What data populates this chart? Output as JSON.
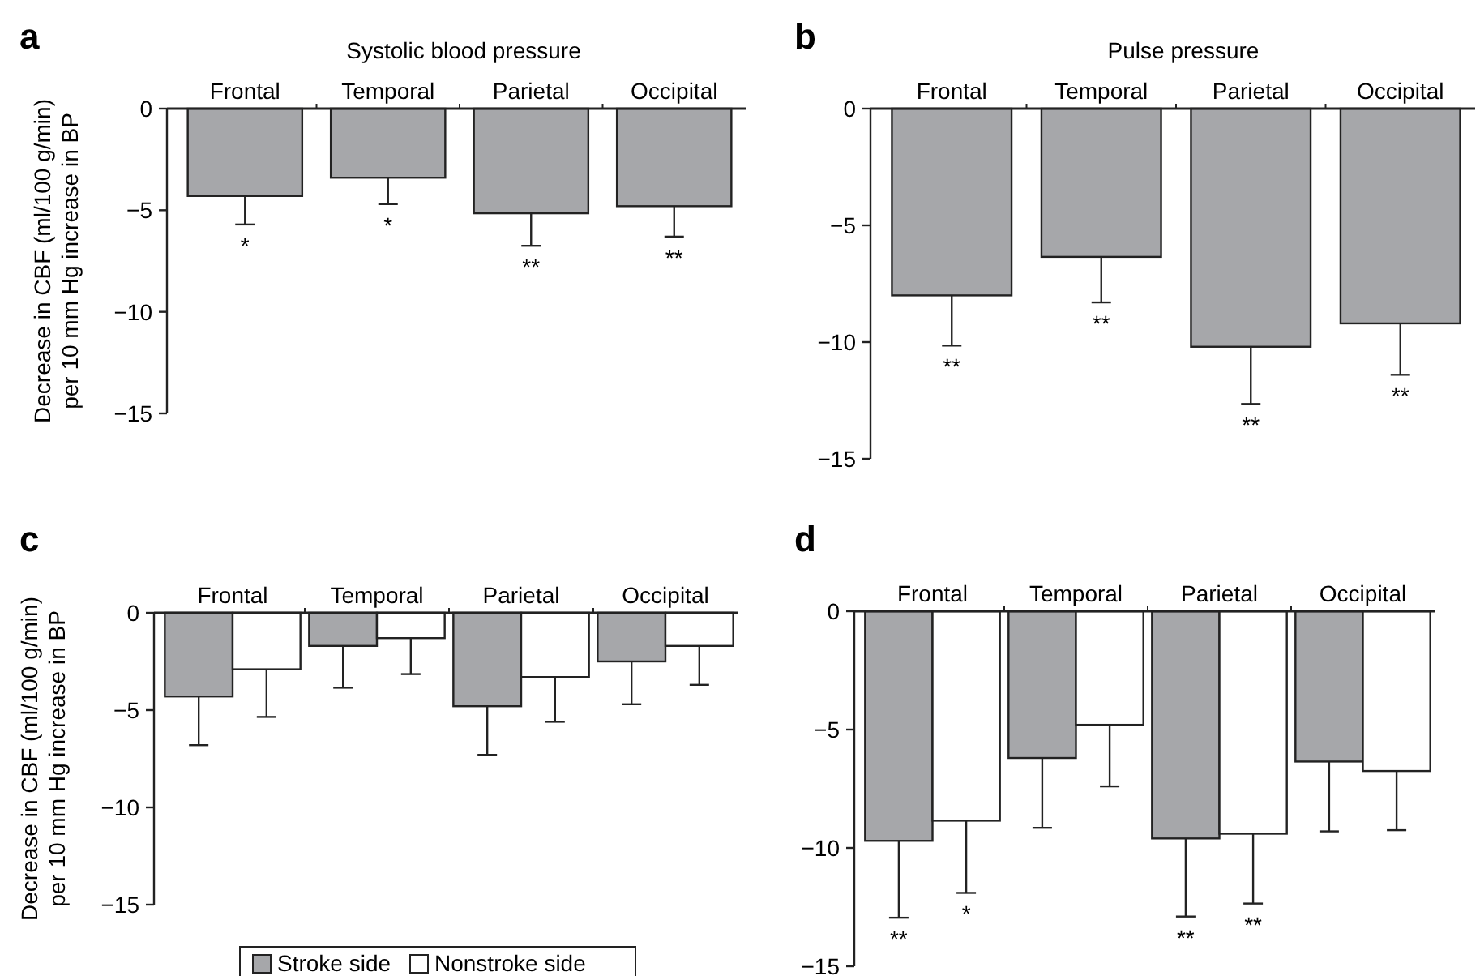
{
  "chart_data": [
    {
      "type": "bar",
      "title": "Systolic blood pressure",
      "ylabel": "Decrease in CBF (ml/100 g/min)\nper 10 mm Hg increase in BP",
      "categories": [
        "Frontal",
        "Temporal",
        "Parietal",
        "Occipital"
      ],
      "series": [
        {
          "color": "#a6a7aa",
          "values": [
            -4.3,
            -3.4,
            -5.15,
            -4.8
          ],
          "errors": [
            [
              -5.7,
              -4.3
            ],
            [
              -4.7,
              -3.4
            ],
            [
              -6.75,
              -5.15
            ],
            [
              -6.3,
              -4.8
            ]
          ]
        }
      ],
      "ylim": [
        -15,
        0
      ],
      "yticks": [
        {
          "value": 0,
          "label": "0"
        },
        {
          "value": -5,
          "label": "−5"
        },
        {
          "value": -10,
          "label": "−10"
        },
        {
          "value": -15,
          "label": "−15"
        }
      ],
      "annotations": [
        "a",
        "*",
        "*",
        "**",
        "**"
      ]
    },
    {
      "type": "bar",
      "title": "Pulse pressure",
      "categories": [
        "Frontal",
        "Temporal",
        "Parietal",
        "Occipital"
      ],
      "series": [
        {
          "color": "#a6a7aa",
          "values": [
            -8.0,
            -6.35,
            -10.2,
            -9.2
          ],
          "errors": [
            [
              -10.15,
              -8.0
            ],
            [
              -8.3,
              -6.35
            ],
            [
              -12.65,
              -10.2
            ],
            [
              -11.4,
              -9.2
            ]
          ]
        }
      ],
      "ylim": [
        -15,
        0
      ],
      "yticks": [
        {
          "value": 0,
          "label": "0"
        },
        {
          "value": -5,
          "label": "−5"
        },
        {
          "value": -10,
          "label": "−10"
        },
        {
          "value": -15,
          "label": "−15"
        }
      ],
      "annotations": [
        "b",
        "**",
        "**",
        "**",
        "**"
      ]
    },
    {
      "type": "bar",
      "ylabel": "Decrease in CBF (ml/100 g/min)\nper 10 mm Hg increase in BP",
      "categories": [
        "Frontal",
        "Temporal",
        "Parietal",
        "Occipital"
      ],
      "series": [
        {
          "name": "Stroke side",
          "color": "#a6a7aa",
          "values": [
            -4.3,
            -1.7,
            -4.8,
            -2.5
          ],
          "errors": [
            [
              -6.8,
              -4.3
            ],
            [
              -3.85,
              -1.7
            ],
            [
              -7.3,
              -4.8
            ],
            [
              -4.7,
              -2.5
            ]
          ]
        },
        {
          "name": "Nonstroke side",
          "color": "#ffffff",
          "values": [
            -2.9,
            -1.3,
            -3.3,
            -1.7
          ],
          "errors": [
            [
              -5.35,
              -2.9
            ],
            [
              -3.15,
              -1.3
            ],
            [
              -5.6,
              -3.3
            ],
            [
              -3.7,
              -1.7
            ]
          ]
        }
      ],
      "ylim": [
        -15,
        0
      ],
      "yticks": [
        {
          "value": 0,
          "label": "0"
        },
        {
          "value": -5,
          "label": "−5"
        },
        {
          "value": -10,
          "label": "−10"
        },
        {
          "value": -15,
          "label": "−15"
        }
      ],
      "legend": "bottom",
      "annotations": [
        "c"
      ]
    },
    {
      "type": "bar",
      "categories": [
        "Frontal",
        "Temporal",
        "Parietal",
        "Occipital"
      ],
      "series": [
        {
          "color": "#a6a7aa",
          "values": [
            -9.7,
            -6.2,
            -9.6,
            -6.35
          ],
          "errors": [
            [
              -12.95,
              -9.7
            ],
            [
              -9.15,
              -6.2
            ],
            [
              -12.9,
              -9.6
            ],
            [
              -9.3,
              -6.35
            ]
          ]
        },
        {
          "color": "#ffffff",
          "values": [
            -8.85,
            -4.8,
            -9.4,
            -6.75
          ],
          "errors": [
            [
              -11.9,
              -8.85
            ],
            [
              -7.4,
              -4.8
            ],
            [
              -12.35,
              -9.4
            ],
            [
              -9.25,
              -6.75
            ]
          ]
        }
      ],
      "ylim": [
        -15,
        0
      ],
      "yticks": [
        {
          "value": 0,
          "label": "0"
        },
        {
          "value": -5,
          "label": "−5"
        },
        {
          "value": -10,
          "label": "−10"
        },
        {
          "value": -15,
          "label": "−15"
        }
      ],
      "annotations": [
        "d",
        "**",
        "*",
        "**",
        "**"
      ]
    }
  ]
}
